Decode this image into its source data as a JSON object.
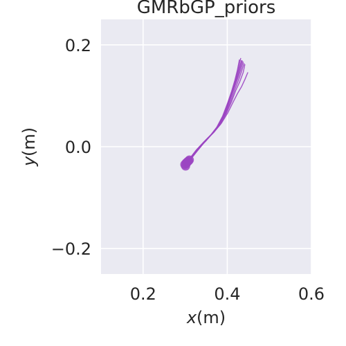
{
  "chart_data": {
    "type": "line",
    "title": "GMRbGP_priors",
    "xlabel": "x(m)",
    "ylabel": "y(m)",
    "xlabel_parts": {
      "name": "x",
      "unit": "(m)"
    },
    "ylabel_parts": {
      "name": "y",
      "unit": "(m)"
    },
    "xlim": [
      0.1,
      0.6
    ],
    "ylim": [
      -0.25,
      0.25
    ],
    "xticks": [
      0.2,
      0.4,
      0.6
    ],
    "yticks": [
      -0.2,
      0.0,
      0.2
    ],
    "xtick_labels": [
      "0.2",
      "0.4",
      "0.6"
    ],
    "ytick_labels": [
      "−0.2",
      "0.0",
      "0.2"
    ],
    "grid": true,
    "background_color": "#eaeaf2",
    "grid_color": "#ffffff",
    "series_color": "#9b45c2",
    "series": [
      {
        "x": [
          0.302,
          0.312,
          0.328,
          0.345,
          0.362,
          0.378,
          0.392,
          0.403,
          0.413,
          0.421,
          0.428,
          0.434
        ],
        "y": [
          -0.032,
          -0.022,
          -0.005,
          0.01,
          0.024,
          0.041,
          0.063,
          0.088,
          0.112,
          0.133,
          0.152,
          0.17
        ]
      },
      {
        "x": [
          0.305,
          0.316,
          0.331,
          0.348,
          0.365,
          0.381,
          0.395,
          0.406,
          0.416,
          0.425,
          0.432,
          0.438
        ],
        "y": [
          -0.03,
          -0.02,
          -0.004,
          0.012,
          0.026,
          0.043,
          0.065,
          0.09,
          0.114,
          0.134,
          0.151,
          0.167
        ]
      },
      {
        "x": [
          0.299,
          0.309,
          0.325,
          0.342,
          0.359,
          0.375,
          0.389,
          0.4,
          0.41,
          0.418,
          0.424,
          0.429
        ],
        "y": [
          -0.035,
          -0.025,
          -0.008,
          0.007,
          0.021,
          0.038,
          0.06,
          0.084,
          0.108,
          0.13,
          0.15,
          0.171
        ]
      },
      {
        "x": [
          0.308,
          0.318,
          0.334,
          0.35,
          0.367,
          0.384,
          0.398,
          0.41,
          0.42,
          0.43,
          0.438,
          0.442
        ],
        "y": [
          -0.028,
          -0.018,
          -0.002,
          0.014,
          0.028,
          0.044,
          0.066,
          0.088,
          0.11,
          0.128,
          0.146,
          0.162
        ]
      },
      {
        "x": [
          0.301,
          0.311,
          0.327,
          0.343,
          0.36,
          0.377,
          0.391,
          0.402,
          0.412,
          0.42,
          0.426,
          0.432
        ],
        "y": [
          -0.038,
          -0.027,
          -0.01,
          0.006,
          0.022,
          0.04,
          0.062,
          0.086,
          0.11,
          0.132,
          0.152,
          0.174
        ]
      },
      {
        "x": [
          0.31,
          0.32,
          0.336,
          0.352,
          0.369,
          0.386,
          0.401,
          0.413,
          0.424,
          0.434,
          0.442,
          0.449
        ],
        "y": [
          -0.026,
          -0.017,
          -0.001,
          0.015,
          0.029,
          0.046,
          0.066,
          0.086,
          0.104,
          0.118,
          0.132,
          0.146
        ]
      },
      {
        "x": [
          0.303,
          0.313,
          0.329,
          0.346,
          0.363,
          0.38,
          0.394,
          0.405,
          0.415,
          0.423,
          0.43,
          0.436
        ],
        "y": [
          -0.033,
          -0.023,
          -0.006,
          0.009,
          0.024,
          0.042,
          0.064,
          0.089,
          0.113,
          0.134,
          0.152,
          0.169
        ]
      },
      {
        "x": [
          0.306,
          0.316,
          0.332,
          0.349,
          0.366,
          0.383,
          0.397,
          0.408,
          0.418,
          0.427,
          0.434,
          0.44
        ],
        "y": [
          -0.029,
          -0.019,
          -0.003,
          0.011,
          0.027,
          0.045,
          0.066,
          0.089,
          0.112,
          0.131,
          0.148,
          0.164
        ]
      }
    ]
  }
}
